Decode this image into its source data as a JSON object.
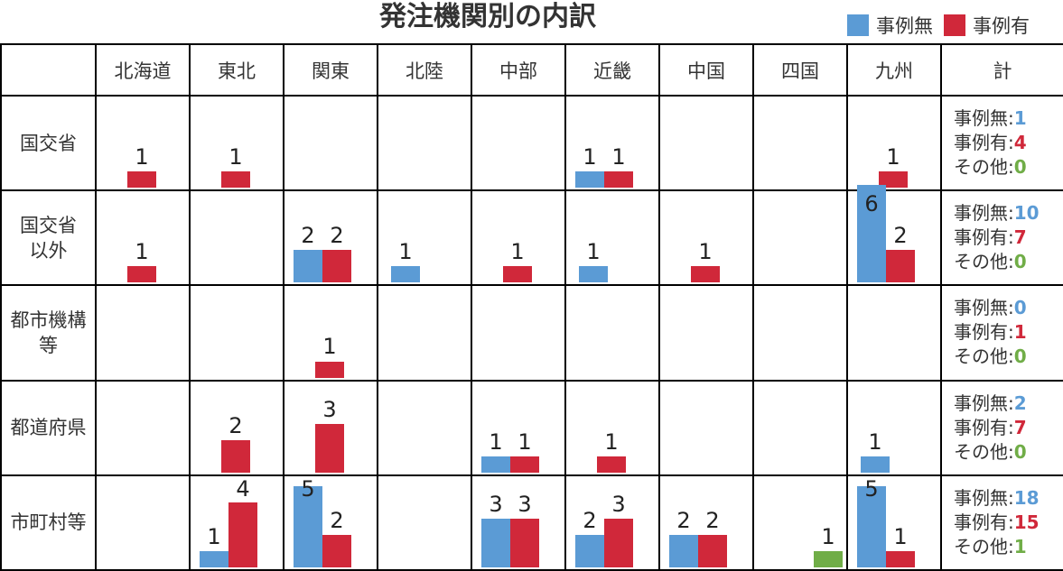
{
  "chart_data": {
    "type": "bar",
    "title": "発注機関別の内訳",
    "legend_position": "top-right",
    "series": [
      {
        "name": "事例無",
        "color": "#5b9bd5"
      },
      {
        "name": "事例有",
        "color": "#d0283a"
      },
      {
        "color": "#70ad47"
      }
    ],
    "columns": [
      "北海道",
      "東北",
      "関東",
      "北陸",
      "中部",
      "近畿",
      "中国",
      "四国",
      "九州"
    ],
    "total_header": "計",
    "rows": [
      {
        "label": "国交省",
        "cells": [
          {
            "none": null,
            "yes": 1,
            "other": null
          },
          {
            "none": null,
            "yes": 1,
            "other": null
          },
          {
            "none": null,
            "yes": null,
            "other": null
          },
          {
            "none": null,
            "yes": null,
            "other": null
          },
          {
            "none": null,
            "yes": null,
            "other": null
          },
          {
            "none": 1,
            "yes": 1,
            "other": null
          },
          {
            "none": null,
            "yes": null,
            "other": null
          },
          {
            "none": null,
            "yes": null,
            "other": null
          },
          {
            "none": null,
            "yes": 1,
            "other": null
          }
        ],
        "totals": {
          "none_label": "事例無:",
          "none": "1",
          "yes_label": "事例有:",
          "yes": "4",
          "other_label": "その他:",
          "other": "0"
        }
      },
      {
        "label": "国交省\n以外",
        "cells": [
          {
            "none": null,
            "yes": 1,
            "other": null
          },
          {
            "none": null,
            "yes": null,
            "other": null
          },
          {
            "none": 2,
            "yes": 2,
            "other": null
          },
          {
            "none": 1,
            "yes": null,
            "other": null
          },
          {
            "none": null,
            "yes": 1,
            "other": null
          },
          {
            "none": 1,
            "yes": null,
            "other": null
          },
          {
            "none": null,
            "yes": 1,
            "other": null
          },
          {
            "none": null,
            "yes": null,
            "other": null
          },
          {
            "none": 6,
            "yes": 2,
            "other": null
          }
        ],
        "totals": {
          "none_label": "事例無:",
          "none": "10",
          "yes_label": "事例有:",
          "yes": "7",
          "other_label": "その他:",
          "other": "0"
        }
      },
      {
        "label": "都市機構\n等",
        "cells": [
          {
            "none": null,
            "yes": null,
            "other": null
          },
          {
            "none": null,
            "yes": null,
            "other": null
          },
          {
            "none": null,
            "yes": 1,
            "other": null
          },
          {
            "none": null,
            "yes": null,
            "other": null
          },
          {
            "none": null,
            "yes": null,
            "other": null
          },
          {
            "none": null,
            "yes": null,
            "other": null
          },
          {
            "none": null,
            "yes": null,
            "other": null
          },
          {
            "none": null,
            "yes": null,
            "other": null
          },
          {
            "none": null,
            "yes": null,
            "other": null
          }
        ],
        "totals": {
          "none_label": "事例無:",
          "none": "0",
          "yes_label": "事例有:",
          "yes": "1",
          "other_label": "その他:",
          "other": "0"
        }
      },
      {
        "label": "都道府県",
        "cells": [
          {
            "none": null,
            "yes": null,
            "other": null
          },
          {
            "none": null,
            "yes": 2,
            "other": null
          },
          {
            "none": null,
            "yes": 3,
            "other": null
          },
          {
            "none": null,
            "yes": null,
            "other": null
          },
          {
            "none": 1,
            "yes": 1,
            "other": null
          },
          {
            "none": null,
            "yes": 1,
            "other": null
          },
          {
            "none": null,
            "yes": null,
            "other": null
          },
          {
            "none": null,
            "yes": null,
            "other": null
          },
          {
            "none": 1,
            "yes": null,
            "other": null
          }
        ],
        "totals": {
          "none_label": "事例無:",
          "none": "2",
          "yes_label": "事例有:",
          "yes": "7",
          "other_label": "その他:",
          "other": "0"
        }
      },
      {
        "label": "市町村等",
        "cells": [
          {
            "none": null,
            "yes": null,
            "other": null
          },
          {
            "none": 1,
            "yes": 4,
            "other": null
          },
          {
            "none": 5,
            "yes": 2,
            "other": null
          },
          {
            "none": null,
            "yes": null,
            "other": null
          },
          {
            "none": 3,
            "yes": 3,
            "other": null
          },
          {
            "none": 2,
            "yes": 3,
            "other": null
          },
          {
            "none": 2,
            "yes": 2,
            "other": null
          },
          {
            "none": null,
            "yes": null,
            "other": 1
          },
          {
            "none": 5,
            "yes": 1,
            "other": null
          }
        ],
        "totals": {
          "none_label": "事例無:",
          "none": "18",
          "yes_label": "事例有:",
          "yes": "15",
          "other_label": "その他:",
          "other": "1"
        }
      }
    ]
  }
}
